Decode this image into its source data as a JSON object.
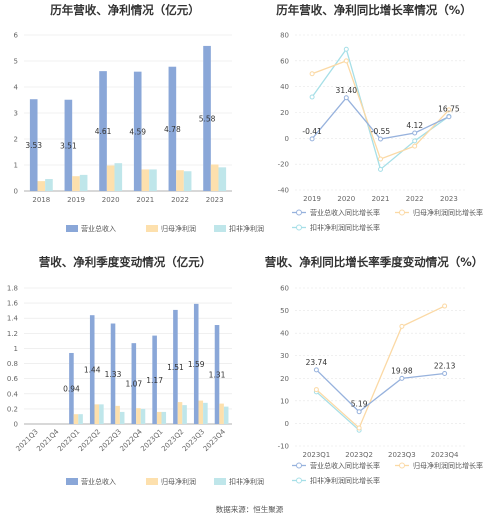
{
  "footer": "数据来源：恒生聚源",
  "colors": {
    "revenue": "#8aa7d8",
    "netprofit": "#fde0ad",
    "deducted": "#bfe6ea",
    "revenue_line": "#97b2dd",
    "netprofit_line": "#fbd9a5",
    "deducted_line": "#a6dfe7",
    "grid": "#e6e6e6"
  },
  "chart_data": [
    {
      "type": "bar",
      "title": "历年营收、净利情况（亿元）",
      "categories": [
        "2018",
        "2019",
        "2020",
        "2021",
        "2022",
        "2023"
      ],
      "ylim": [
        0,
        6
      ],
      "yticks": [
        "0",
        "1",
        "2",
        "3",
        "4",
        "5",
        "6"
      ],
      "series": [
        {
          "name": "营业总收入",
          "values": [
            3.53,
            3.51,
            4.61,
            4.59,
            4.78,
            5.58
          ],
          "labels": [
            "3.53",
            "3.51",
            "4.61",
            "4.59",
            "4.78",
            "5.58"
          ]
        },
        {
          "name": "归母净利润",
          "values": [
            0.38,
            0.57,
            0.98,
            0.83,
            0.8,
            1.02
          ]
        },
        {
          "name": "扣非净利润",
          "values": [
            0.46,
            0.62,
            1.07,
            0.83,
            0.76,
            0.91
          ]
        }
      ]
    },
    {
      "type": "line",
      "title": "历年营收、净利同比增长率情况（%）",
      "categories": [
        "2019",
        "2020",
        "2021",
        "2022",
        "2023"
      ],
      "ylim": [
        -40,
        80
      ],
      "yticks": [
        "-40",
        "-20",
        "0",
        "20",
        "40",
        "60",
        "80"
      ],
      "series": [
        {
          "name": "营业总收入同比增长率",
          "values": [
            -0.41,
            31.4,
            -0.55,
            4.12,
            16.75
          ],
          "labels": [
            "-0.41",
            "31.40",
            "-0.55",
            "4.12",
            "16.75"
          ]
        },
        {
          "name": "归母净利润同比增长率",
          "values": [
            50,
            60,
            -16,
            -6,
            22
          ]
        },
        {
          "name": "扣非净利润同比增长率",
          "values": [
            32,
            69,
            -24,
            -2,
            17
          ]
        }
      ]
    },
    {
      "type": "bar",
      "title": "营收、净利季度变动情况（亿元）",
      "categories": [
        "2021Q3",
        "2021Q4",
        "2022Q1",
        "2022Q2",
        "2022Q3",
        "2022Q4",
        "2023Q1",
        "2023Q2",
        "2023Q3",
        "2023Q4"
      ],
      "ylim": [
        0,
        1.8
      ],
      "yticks": [
        "0",
        "0.2",
        "0.4",
        "0.6",
        "0.8",
        "1",
        "1.2",
        "1.4",
        "1.6",
        "1.8"
      ],
      "series": [
        {
          "name": "营业总收入",
          "values": [
            null,
            null,
            0.94,
            1.44,
            1.33,
            1.07,
            1.17,
            1.51,
            1.59,
            1.31
          ],
          "labels": [
            "",
            "",
            "0.94",
            "1.44",
            "1.33",
            "1.07",
            "1.17",
            "1.51",
            "1.59",
            "1.31"
          ]
        },
        {
          "name": "归母净利润",
          "values": [
            null,
            null,
            0.13,
            0.26,
            0.24,
            0.21,
            0.16,
            0.29,
            0.31,
            0.27
          ]
        },
        {
          "name": "扣非净利润",
          "values": [
            null,
            null,
            0.13,
            0.26,
            0.16,
            0.2,
            0.16,
            0.25,
            0.28,
            0.23
          ]
        }
      ]
    },
    {
      "type": "line",
      "title": "营收、净利同比增长率季度变动情况（%）",
      "categories": [
        "2023Q1",
        "2023Q2",
        "2023Q3",
        "2023Q4"
      ],
      "ylim": [
        -10,
        60
      ],
      "yticks": [
        "-10",
        "0",
        "10",
        "20",
        "30",
        "40",
        "50",
        "60"
      ],
      "series": [
        {
          "name": "营业总收入同比增长率",
          "values": [
            23.74,
            5.19,
            19.98,
            22.13
          ],
          "labels": [
            "23.74",
            "5.19",
            "19.98",
            "22.13"
          ]
        },
        {
          "name": "归母净利润同比增长率",
          "values": [
            15,
            -2,
            43,
            52
          ]
        },
        {
          "name": "扣非净利润同比增长率",
          "values": [
            14,
            -3,
            null,
            null
          ]
        }
      ]
    }
  ]
}
